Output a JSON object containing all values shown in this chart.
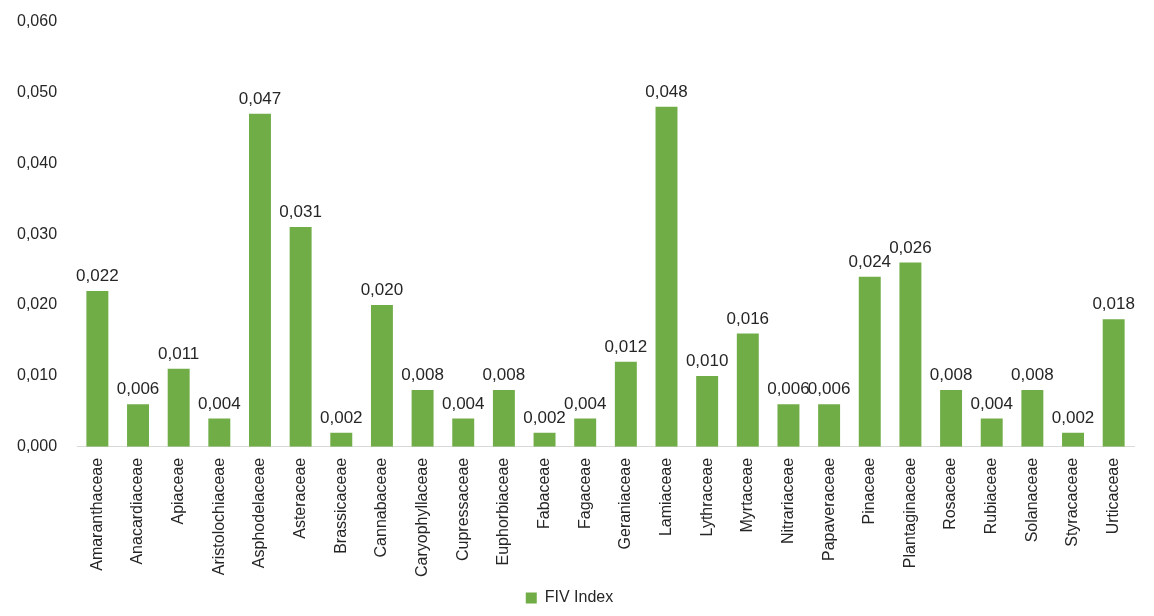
{
  "chart_data": {
    "type": "bar",
    "categories": [
      "Amaranthaceae",
      "Anacardiaceae",
      "Apiaceae",
      "Aristolochiaceae",
      "Asphodelaceae",
      "Asteraceae",
      "Brassicaceae",
      "Cannabaceae",
      "Caryophyllaceae",
      "Cupressaceae",
      "Euphorbiaceae",
      "Fabaceae",
      "Fagaceae",
      "Geraniaceae",
      "Lamiaceae",
      "Lythraceae",
      "Myrtaceae",
      "Nitrariaceae",
      "Papaveraceae",
      "Pinaceae",
      "Plantaginaceae",
      "Rosaceae",
      "Rubiaceae",
      "Solanaceae",
      "Styracaceae",
      "Urticaceae"
    ],
    "series": [
      {
        "name": "FIV Index",
        "color": "#70ad47",
        "values": [
          0.022,
          0.006,
          0.011,
          0.004,
          0.047,
          0.031,
          0.002,
          0.02,
          0.008,
          0.004,
          0.008,
          0.002,
          0.004,
          0.012,
          0.048,
          0.01,
          0.016,
          0.006,
          0.006,
          0.024,
          0.026,
          0.008,
          0.004,
          0.008,
          0.002,
          0.018
        ],
        "value_labels": [
          "0,022",
          "0,006",
          "0,011",
          "0,004",
          "0,047",
          "0,031",
          "0,002",
          "0,020",
          "0,008",
          "0,004",
          "0,008",
          "0,002",
          "0,004",
          "0,012",
          "0,048",
          "0,010",
          "0,016",
          "0,006",
          "0,006",
          "0,024",
          "0,026",
          "0,008",
          "0,004",
          "0,008",
          "0,002",
          "0,018"
        ]
      }
    ],
    "ylim": [
      0,
      0.06
    ],
    "yticks": [
      {
        "value": 0,
        "label": "0,000"
      },
      {
        "value": 0.01,
        "label": "0,010"
      },
      {
        "value": 0.02,
        "label": "0,020"
      },
      {
        "value": 0.03,
        "label": "0,030"
      },
      {
        "value": 0.04,
        "label": "0,040"
      },
      {
        "value": 0.05,
        "label": "0,050"
      },
      {
        "value": 0.06,
        "label": "0,060"
      }
    ],
    "legend": "bottom"
  }
}
